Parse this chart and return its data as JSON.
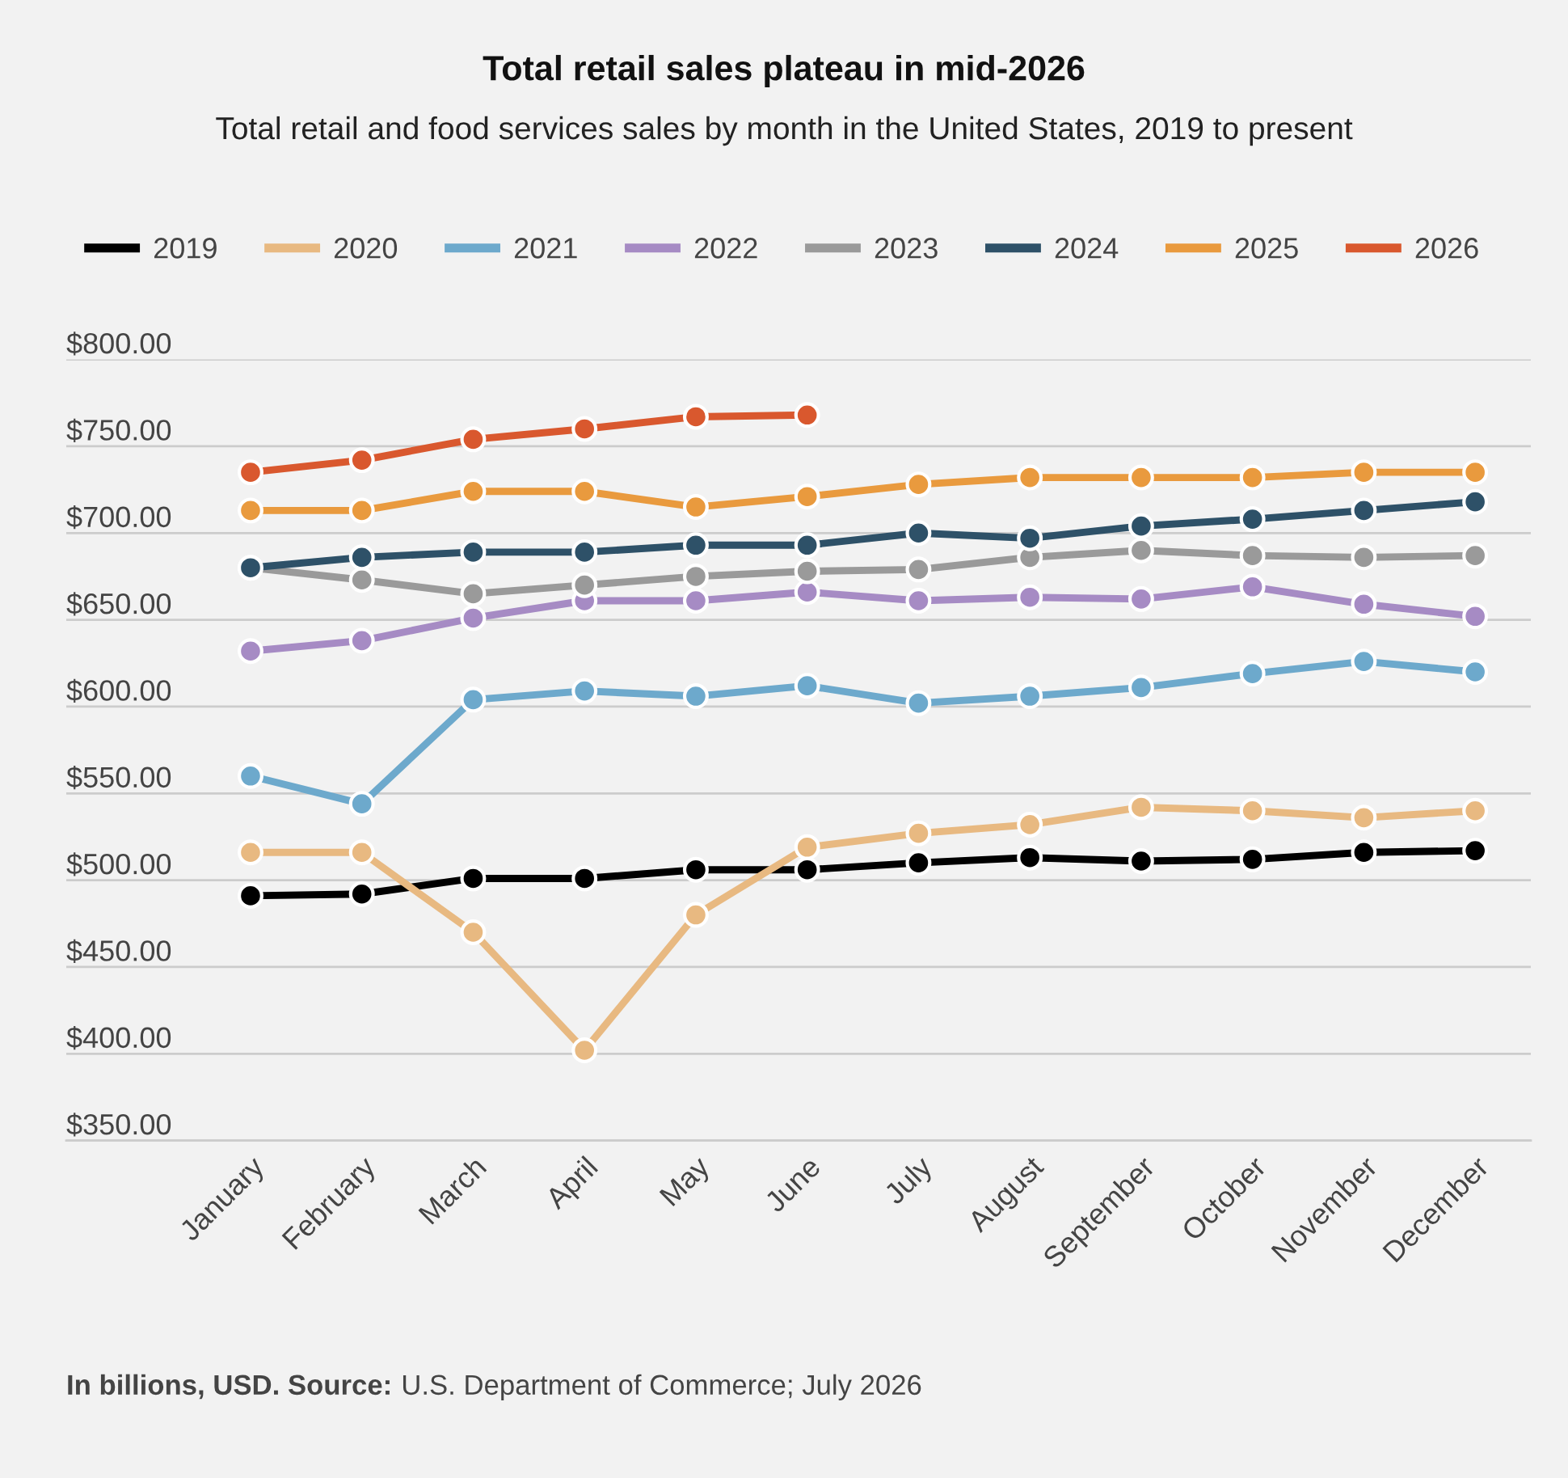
{
  "chart_data": {
    "type": "line",
    "title": "Total retail sales plateau in mid-2026",
    "subtitle": "Total retail and food services sales by month in the United States, 2019 to present",
    "categories": [
      "January",
      "February",
      "March",
      "April",
      "May",
      "June",
      "July",
      "August",
      "September",
      "October",
      "November",
      "December"
    ],
    "series": [
      {
        "name": "2019",
        "color": "#000000",
        "values": [
          491,
          492,
          501,
          501,
          506,
          506,
          510,
          513,
          511,
          512,
          516,
          517
        ]
      },
      {
        "name": "2020",
        "color": "#e8b981",
        "values": [
          516,
          516,
          470,
          402,
          480,
          519,
          527,
          532,
          542,
          540,
          536,
          540
        ]
      },
      {
        "name": "2021",
        "color": "#6da9cc",
        "values": [
          560,
          544,
          604,
          609,
          606,
          612,
          602,
          606,
          611,
          619,
          626,
          620
        ]
      },
      {
        "name": "2022",
        "color": "#a68bc4",
        "values": [
          632,
          638,
          651,
          661,
          661,
          666,
          661,
          663,
          662,
          669,
          659,
          652
        ]
      },
      {
        "name": "2023",
        "color": "#9a9a9a",
        "values": [
          680,
          673,
          665,
          670,
          675,
          678,
          679,
          686,
          690,
          687,
          686,
          687
        ]
      },
      {
        "name": "2024",
        "color": "#2e5168",
        "values": [
          680,
          686,
          689,
          689,
          693,
          693,
          700,
          697,
          704,
          708,
          713,
          718
        ]
      },
      {
        "name": "2025",
        "color": "#e99a3e",
        "values": [
          713,
          713,
          724,
          724,
          715,
          721,
          728,
          732,
          732,
          732,
          735,
          735
        ]
      },
      {
        "name": "2026",
        "color": "#d9582e",
        "values": [
          735,
          742,
          754,
          760,
          767,
          768,
          null,
          null,
          null,
          null,
          null,
          null
        ]
      }
    ],
    "ylim": [
      350,
      800
    ],
    "yticks": [
      {
        "value": 350,
        "label": "$350.00"
      },
      {
        "value": 400,
        "label": "$400.00"
      },
      {
        "value": 450,
        "label": "$450.00"
      },
      {
        "value": 500,
        "label": "$500.00"
      },
      {
        "value": 550,
        "label": "$550.00"
      },
      {
        "value": 600,
        "label": "$600.00"
      },
      {
        "value": 650,
        "label": "$650.00"
      },
      {
        "value": 700,
        "label": "$700.00"
      },
      {
        "value": 750,
        "label": "$750.00"
      },
      {
        "value": 800,
        "label": "$800.00"
      }
    ],
    "grid": "y",
    "legend": "top",
    "marker": "circle",
    "line_style": "solid",
    "annotations": [
      "In billions, USD. Source:",
      "U.S. Department of Commerce; July 2026"
    ]
  }
}
